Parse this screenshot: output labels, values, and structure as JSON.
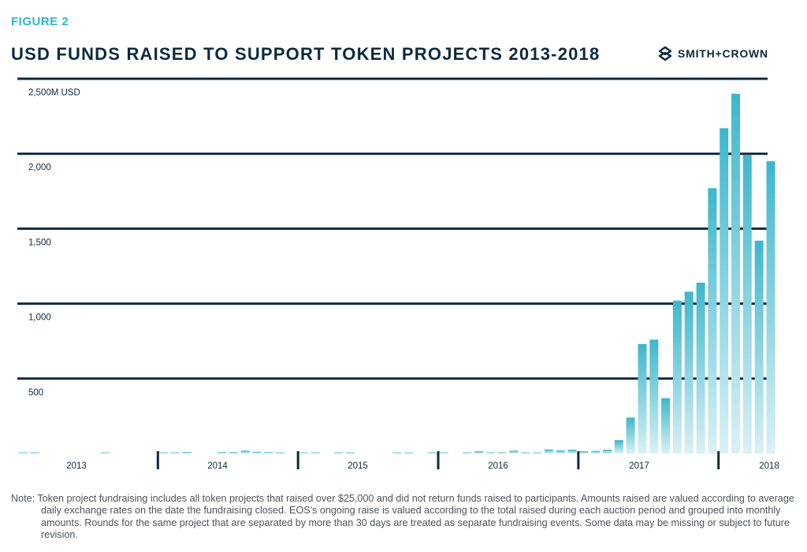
{
  "figure_label": "FIGURE 2",
  "title": "USD FUNDS RAISED TO SUPPORT TOKEN PROJECTS 2013-2018",
  "brand": {
    "name": "SMITH+CROWN",
    "icon": "smith-crown-logo-icon"
  },
  "colors": {
    "bar_top": "#3db7cc",
    "bar_bottom": "#d9f1f5",
    "gridline": "#0d2a3e",
    "accent": "#2fb5c9"
  },
  "chart_data": {
    "type": "bar",
    "title": "USD FUNDS RAISED TO SUPPORT TOKEN PROJECTS 2013-2018",
    "ylabel": "USD",
    "ylim": [
      0,
      2500
    ],
    "yticks": [
      {
        "value": 2500,
        "label": "2,500M USD"
      },
      {
        "value": 2000,
        "label": "2,000"
      },
      {
        "value": 1500,
        "label": "1,500"
      },
      {
        "value": 1000,
        "label": "1,000"
      },
      {
        "value": 500,
        "label": "500"
      }
    ],
    "x_year_labels": [
      "2013",
      "2014",
      "2015",
      "2016",
      "2017",
      "2018"
    ],
    "grid": true,
    "values": [
      6,
      6,
      0,
      0,
      0,
      0,
      0,
      8,
      0,
      0,
      0,
      0,
      4,
      4,
      10,
      0,
      0,
      10,
      10,
      20,
      12,
      10,
      8,
      0,
      6,
      6,
      0,
      4,
      6,
      0,
      0,
      0,
      6,
      8,
      0,
      6,
      6,
      0,
      8,
      16,
      8,
      8,
      20,
      8,
      8,
      28,
      22,
      26,
      16,
      18,
      26,
      90,
      240,
      730,
      760,
      370,
      1020,
      1080,
      1140,
      1770,
      2170,
      2400,
      1990,
      1420,
      1950
    ]
  },
  "note": "Note: Token project fundraising includes all token projects that raised over $25,000 and did not return funds raised to participants. Amounts raised are valued according to average daily exchange rates on the date the fundraising closed. EOS's ongoing raise is valued according to the total raised during each auction period and grouped into monthly amounts. Rounds for the same project that are separated by more than 30 days are treated as separate fundraising events. Some data may be missing or subject to future revision."
}
